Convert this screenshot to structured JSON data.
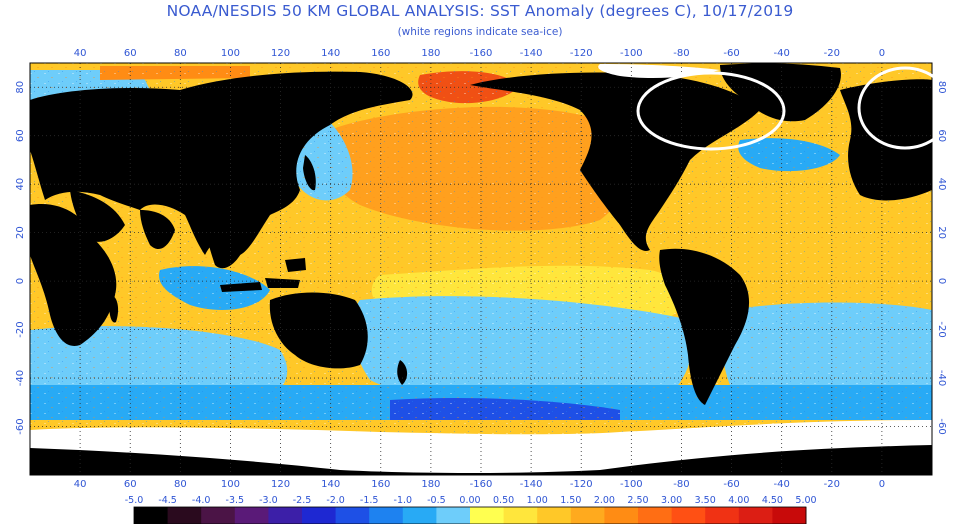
{
  "title": "NOAA/NESDIS 50 KM GLOBAL ANALYSIS: SST Anomaly (degrees C), 10/17/2019",
  "subtitle": "(white regions indicate sea-ice)",
  "map": {
    "lon_range": [
      20,
      380
    ],
    "lat_range": [
      -80,
      90
    ],
    "lon_ticks": [
      "40",
      "60",
      "80",
      "100",
      "120",
      "140",
      "160",
      "180",
      "-160",
      "-140",
      "-120",
      "-100",
      "-80",
      "-60",
      "-40",
      "-20",
      "0"
    ],
    "lat_ticks_left": [
      "80",
      "60",
      "40",
      "20",
      "0",
      "-20",
      "-40",
      "-60"
    ],
    "lat_ticks_right": [
      "80",
      "60",
      "40",
      "20",
      "0",
      "-20",
      "-40",
      "-60"
    ],
    "circles": [
      {
        "label": "north-atlantic-circle"
      },
      {
        "label": "barents-sea-circle"
      }
    ]
  },
  "colorbar": {
    "labels": [
      "-5.0",
      "-4.5",
      "-4.0",
      "-3.5",
      "-3.0",
      "-2.5",
      "-2.0",
      "-1.5",
      "-1.0",
      "-0.5",
      "0.00",
      "0.50",
      "1.00",
      "1.50",
      "2.00",
      "2.50",
      "3.00",
      "3.50",
      "4.00",
      "4.50",
      "5.00"
    ],
    "colors": [
      "#000000",
      "#2a0a1e",
      "#4b1446",
      "#5a1a78",
      "#3c1fa8",
      "#1e28d2",
      "#1e50e6",
      "#1e82f0",
      "#28aaf5",
      "#6ecdfa",
      "#ffff50",
      "#ffe63c",
      "#ffc828",
      "#ffaa1e",
      "#ff8c14",
      "#ff6e14",
      "#ff5014",
      "#f03214",
      "#dc1e14",
      "#c80a0a"
    ]
  },
  "colors": {
    "land": "#000000",
    "ice": "#ffffff",
    "label": "#2f55d4",
    "gridline": "#2a2a2a"
  }
}
